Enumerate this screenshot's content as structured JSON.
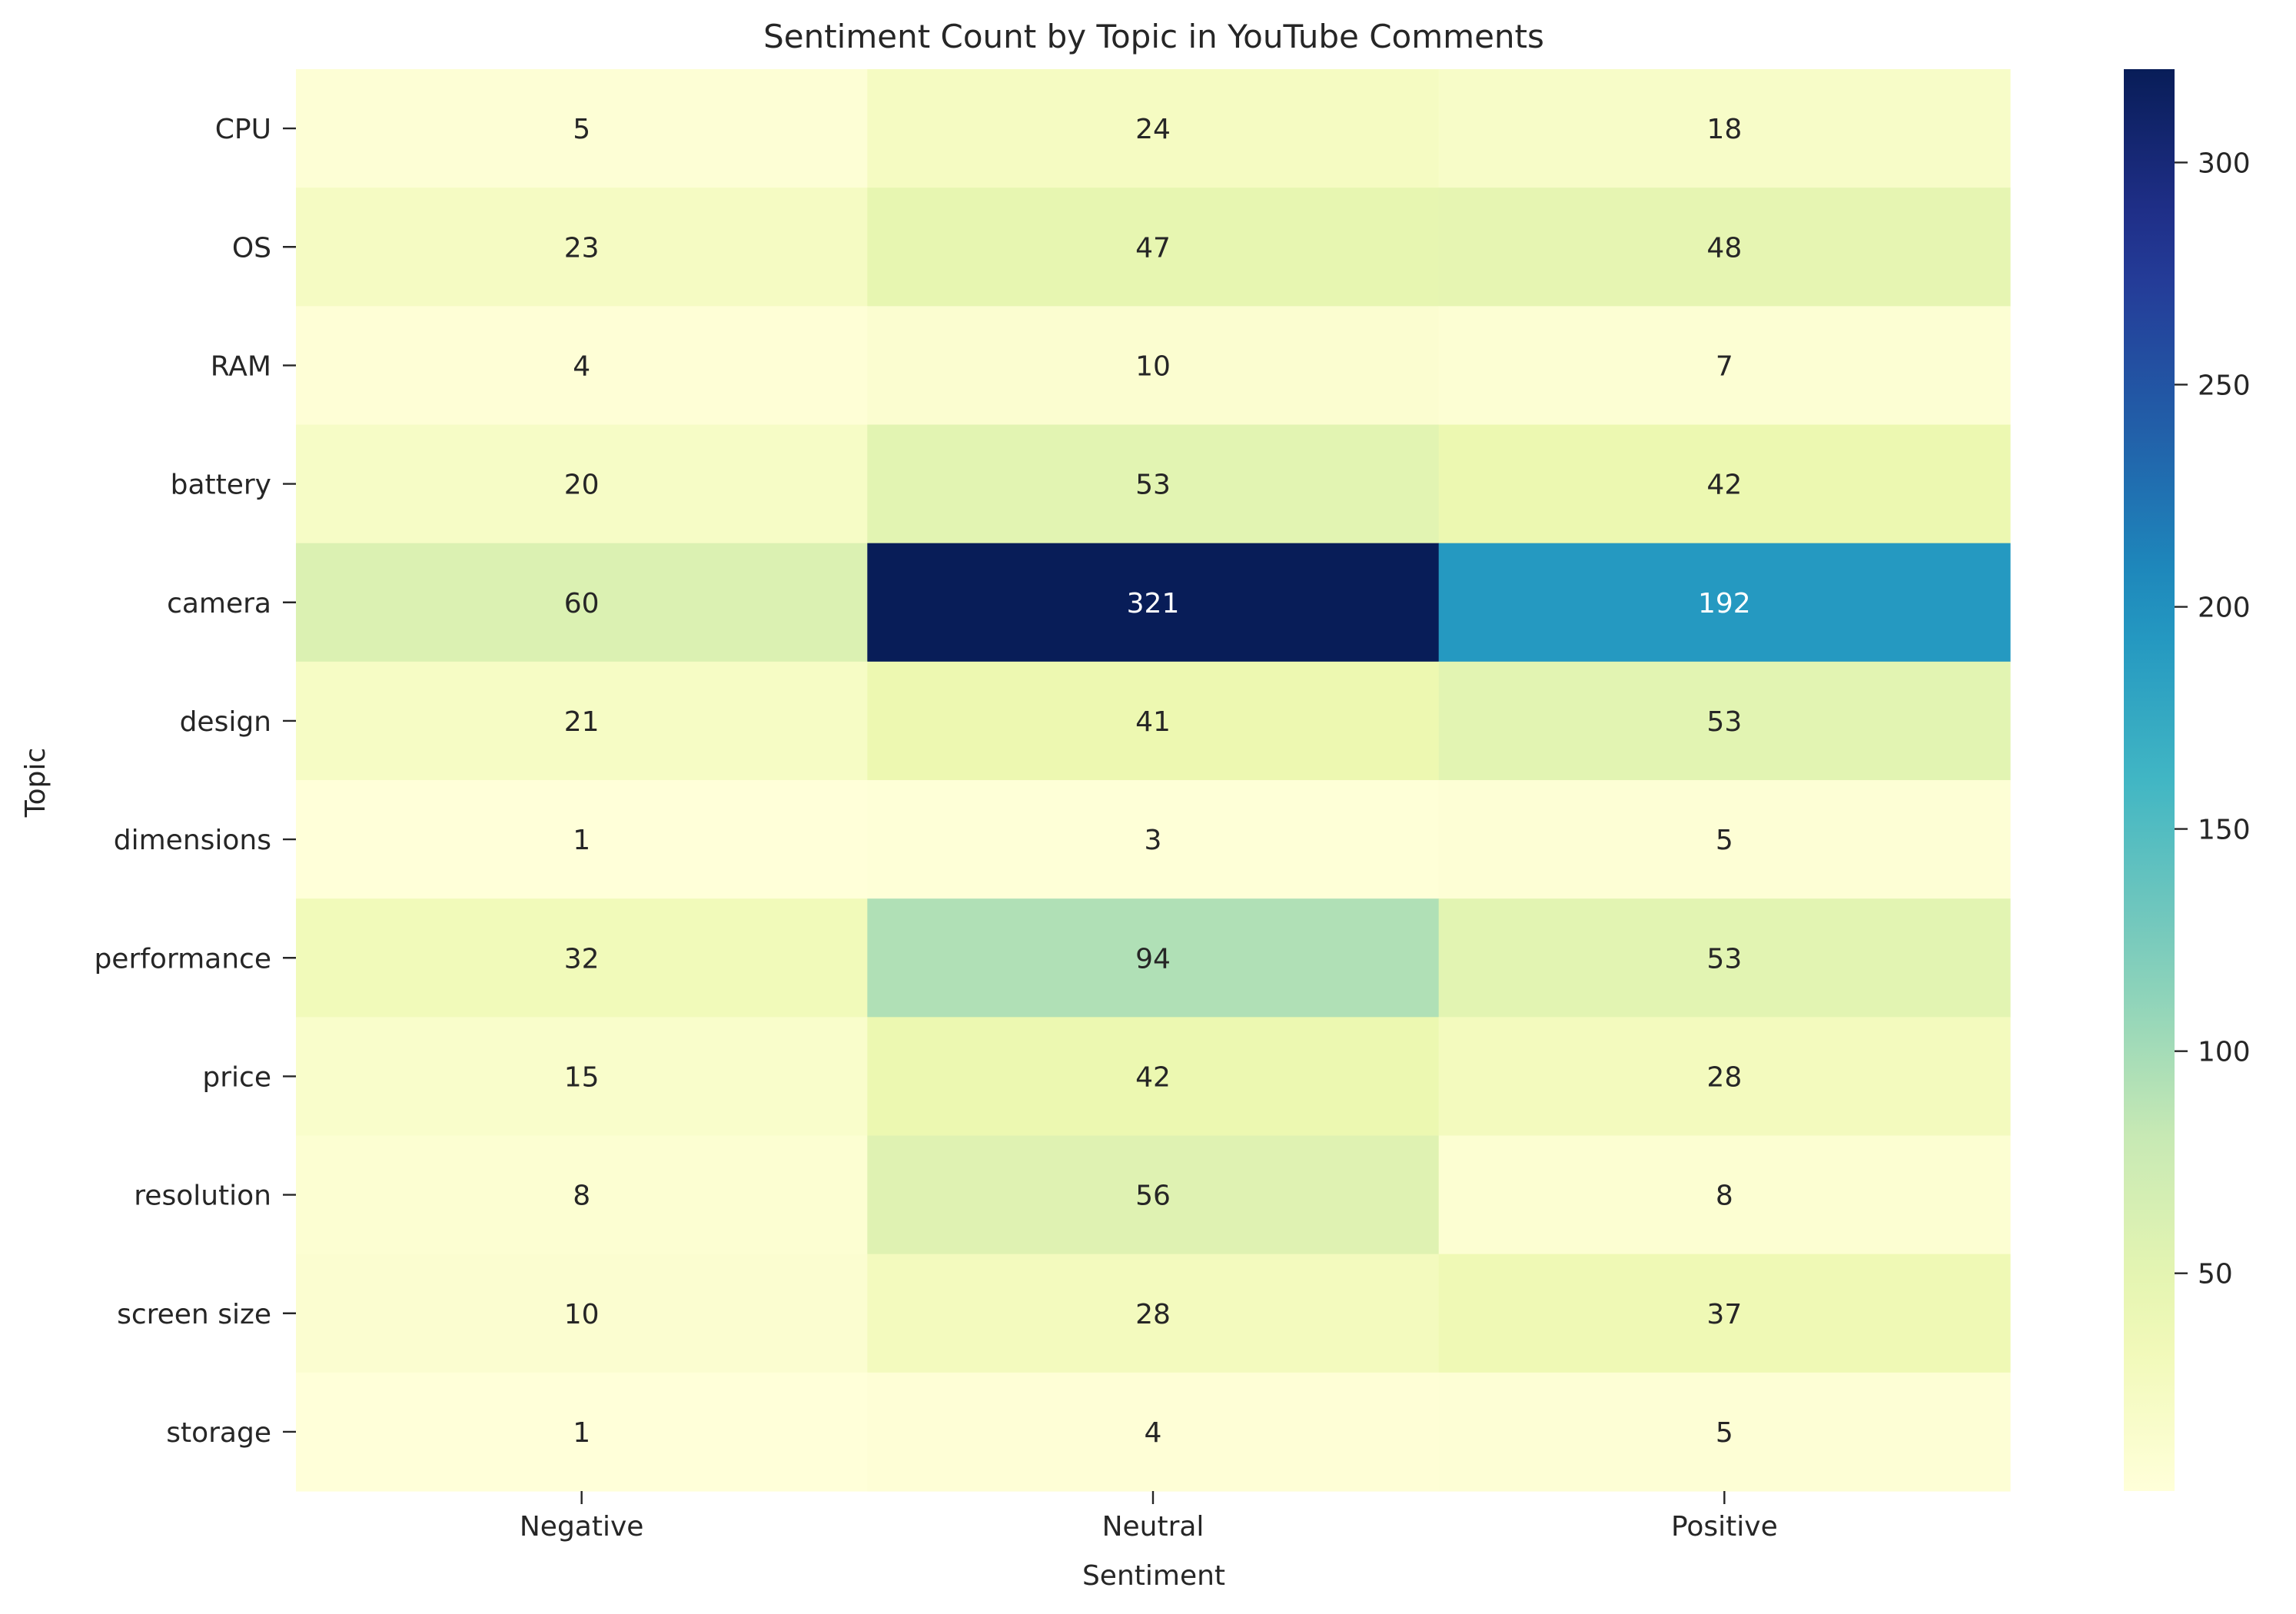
{
  "chart_data": {
    "type": "heatmap",
    "title": "Sentiment Count by Topic in YouTube Comments",
    "xlabel": "Sentiment",
    "ylabel": "Topic",
    "x_categories": [
      "Negative",
      "Neutral",
      "Positive"
    ],
    "y_categories": [
      "CPU",
      "OS",
      "RAM",
      "battery",
      "camera",
      "design",
      "dimensions",
      "performance",
      "price",
      "resolution",
      "screen size",
      "storage"
    ],
    "values": [
      [
        5,
        24,
        18
      ],
      [
        23,
        47,
        48
      ],
      [
        4,
        10,
        7
      ],
      [
        20,
        53,
        42
      ],
      [
        60,
        321,
        192
      ],
      [
        21,
        41,
        53
      ],
      [
        1,
        3,
        5
      ],
      [
        32,
        94,
        53
      ],
      [
        15,
        42,
        28
      ],
      [
        8,
        56,
        8
      ],
      [
        10,
        28,
        37
      ],
      [
        1,
        4,
        5
      ]
    ],
    "colormap": "YlGnBu",
    "colorbar": {
      "vmin": 1,
      "vmax": 321,
      "ticks": [
        50,
        100,
        150,
        200,
        250,
        300
      ]
    },
    "annotated": true,
    "grid": false
  }
}
